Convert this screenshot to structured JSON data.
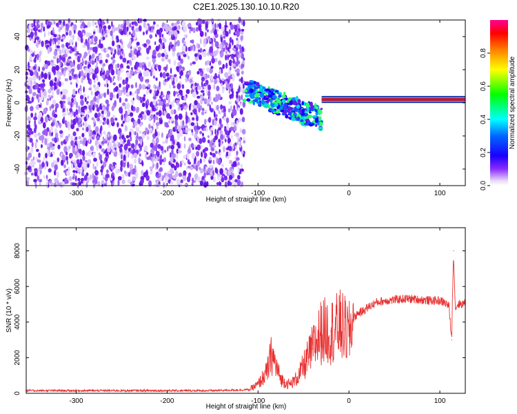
{
  "title": "C2E1.2025.130.10.10.R20",
  "chart_data": [
    {
      "type": "heatmap",
      "panel": "spectrogram",
      "xlabel": "Height of straight line (km)",
      "ylabel": "Frequency (Hz)",
      "xlim": [
        -355,
        128
      ],
      "ylim": [
        -50,
        50
      ],
      "xticks": [
        -300,
        -200,
        -100,
        0,
        100
      ],
      "yticks": [
        -40,
        -20,
        0,
        20,
        40
      ],
      "colorbar": {
        "label": "Normalized spectral amplitude",
        "range": [
          0,
          1
        ],
        "ticks": [
          0.0,
          0.2,
          0.4,
          0.6,
          0.8
        ],
        "colormap": "hsv-rainbow (white/violet at 0, magenta at 1)"
      },
      "features": {
        "noise_region_x": [
          -355,
          -115
        ],
        "noise_level": 0.15,
        "carrier_band_x": [
          -30,
          128
        ],
        "carrier_freq_hz": 2,
        "carrier_level": 1.0,
        "transition_region_x": [
          -115,
          -30
        ],
        "transition_freq_hz": [
          -12,
          15
        ]
      },
      "colors": {
        "carrier": "#e00020",
        "noise": "#7a22e8"
      }
    },
    {
      "type": "line",
      "panel": "snr",
      "xlabel": "Height of straight line (km)",
      "ylabel": "SNR (10 * v/v)",
      "xlim": [
        -355,
        128
      ],
      "ylim": [
        0,
        9300
      ],
      "xticks": [
        -300,
        -200,
        -100,
        0,
        100
      ],
      "yticks": [
        0,
        2000,
        4000,
        6000,
        8000
      ],
      "color": "#e83030",
      "series": [
        {
          "x": [
            -355,
            -300,
            -250,
            -200,
            -150,
            -110,
            -100,
            -90,
            -85,
            -80,
            -75,
            -70,
            -65,
            -60,
            -55,
            -50,
            -45,
            -40,
            -35,
            -30,
            -25,
            -20,
            -15,
            -10,
            -5,
            0,
            5,
            10,
            15,
            20,
            30,
            40,
            50,
            60,
            70,
            80,
            90,
            100,
            105,
            110,
            113,
            115,
            117,
            120,
            128
          ],
          "y": [
            150,
            150,
            150,
            150,
            150,
            200,
            500,
            1200,
            2200,
            1500,
            800,
            600,
            500,
            700,
            1000,
            1500,
            2000,
            2500,
            3000,
            3500,
            3500,
            3500,
            3600,
            3800,
            3600,
            3300,
            4200,
            4500,
            4600,
            4800,
            5100,
            5200,
            5250,
            5300,
            5300,
            5250,
            5200,
            5200,
            5100,
            4900,
            3000,
            8000,
            4800,
            5000,
            5050
          ]
        }
      ]
    }
  ]
}
